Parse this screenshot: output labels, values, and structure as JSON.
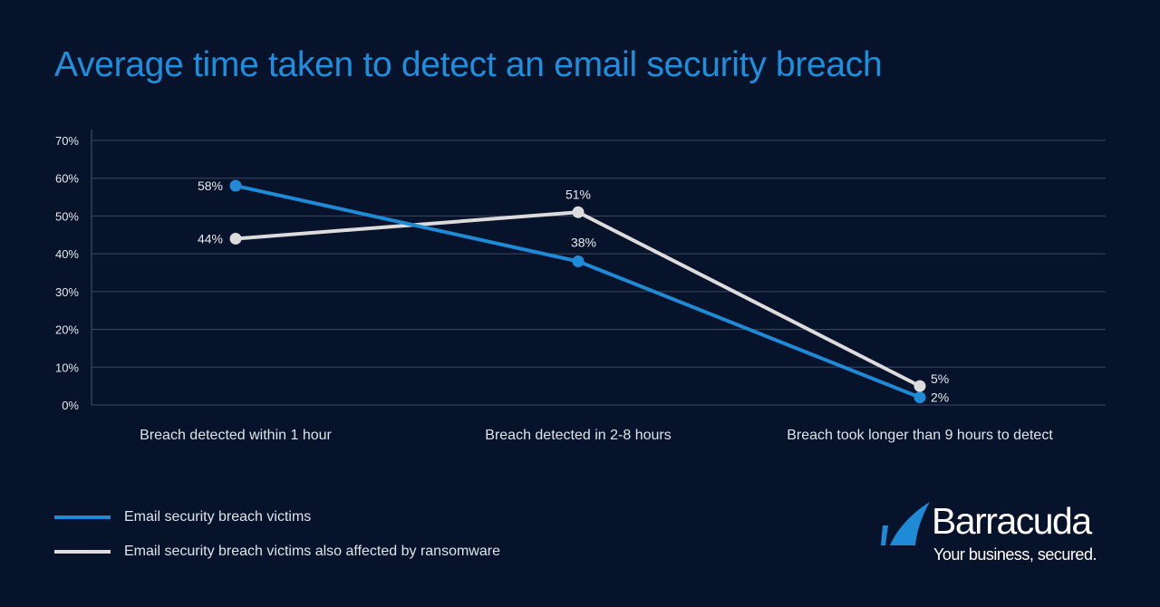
{
  "chart_data": {
    "type": "line",
    "title": "Average time taken to detect an email security breach",
    "xlabel": "",
    "ylabel": "",
    "categories": [
      "Breach detected within 1 hour",
      "Breach detected in 2-8 hours",
      "Breach took longer than 9 hours to detect"
    ],
    "ylim": [
      0,
      70
    ],
    "yticks": [
      "0%",
      "10%",
      "20%",
      "30%",
      "40%",
      "50%",
      "60%",
      "70%"
    ],
    "grid": true,
    "legend_position": "bottom-left",
    "series": [
      {
        "name": "Email security breach victims",
        "values": [
          58,
          38,
          2
        ],
        "labels": [
          "58%",
          "38%",
          "2%"
        ],
        "color": "#1f8ad6"
      },
      {
        "name": "Email security breach victims also affected by ransomware",
        "values": [
          44,
          51,
          5
        ],
        "labels": [
          "44%",
          "51%",
          "5%"
        ],
        "color": "#dcdcdc"
      }
    ]
  },
  "logo": {
    "brand": "Barracuda",
    "tagline": "Your business, secured.",
    "color": "#1f8ad6"
  }
}
